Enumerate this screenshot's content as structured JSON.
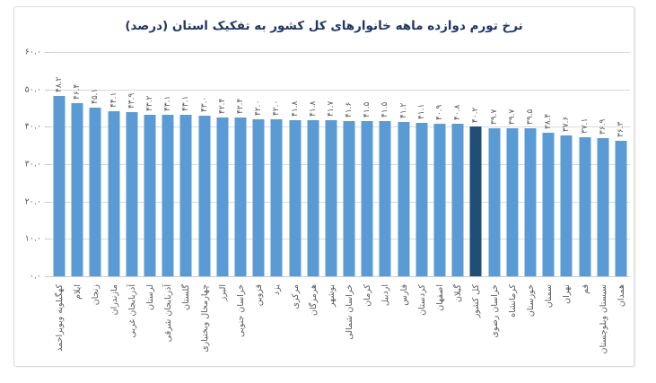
{
  "chart_data": {
    "type": "bar",
    "title": "نرخ تورم دوازده ماهه خانوارهای کل کشور به تفکیک استان (درصد)",
    "xlabel": "",
    "ylabel": "",
    "ylim": [
      0,
      60
    ],
    "grid": true,
    "legend": "none",
    "value_labels_rotated": true,
    "category_labels_rotated": true,
    "highlight_index": 23,
    "colors": {
      "bar": "#5B9BD5",
      "highlight": "#1F4E79",
      "grid": "#D9D9D9",
      "axis_line": "#C9C9C9",
      "label": "#595959",
      "title": "#1F3864"
    },
    "y_ticks": [
      {
        "value": 0,
        "label": "۰.۰"
      },
      {
        "value": 10,
        "label": "۱۰.۰"
      },
      {
        "value": 20,
        "label": "۲۰.۰"
      },
      {
        "value": 30,
        "label": "۳۰.۰"
      },
      {
        "value": 40,
        "label": "۴۰.۰"
      },
      {
        "value": 50,
        "label": "۵۰.۰"
      },
      {
        "value": 60,
        "label": "۶۰.۰"
      }
    ],
    "points": [
      {
        "category": "کهگیلویه وبویراحمد",
        "value": 48.2,
        "label": "۴۸.۲"
      },
      {
        "category": "ایلام",
        "value": 46.4,
        "label": "۴۶.۴"
      },
      {
        "category": "زنجان",
        "value": 45.1,
        "label": "۴۵.۱"
      },
      {
        "category": "مازندران",
        "value": 44.1,
        "label": "۴۴.۱"
      },
      {
        "category": "آذربایجان غربی",
        "value": 43.9,
        "label": "۴۳.۹"
      },
      {
        "category": "لرستان",
        "value": 43.2,
        "label": "۴۳.۲"
      },
      {
        "category": "آذربایجان شرقی",
        "value": 43.1,
        "label": "۴۳.۱"
      },
      {
        "category": "گلستان",
        "value": 43.1,
        "label": "۴۳.۱"
      },
      {
        "category": "چهارمحال وبختیاری",
        "value": 43.0,
        "label": "۴۳.۰"
      },
      {
        "category": "البرز",
        "value": 42.4,
        "label": "۴۲.۴"
      },
      {
        "category": "خراسان جنوبی",
        "value": 42.4,
        "label": "۴۲.۴"
      },
      {
        "category": "قزوین",
        "value": 42.0,
        "label": "۴۲.۰"
      },
      {
        "category": "یزد",
        "value": 42.0,
        "label": "۴۲.۰"
      },
      {
        "category": "مرکزی",
        "value": 41.8,
        "label": "۴۱.۸"
      },
      {
        "category": "هرمزگان",
        "value": 41.8,
        "label": "۴۱.۸"
      },
      {
        "category": "بوشهر",
        "value": 41.7,
        "label": "۴۱.۷"
      },
      {
        "category": "خراسان شمالی",
        "value": 41.6,
        "label": "۴۱.۶"
      },
      {
        "category": "کرمان",
        "value": 41.5,
        "label": "۴۱.۵"
      },
      {
        "category": "اردبیل",
        "value": 41.5,
        "label": "۴۱.۵"
      },
      {
        "category": "فارس",
        "value": 41.2,
        "label": "۴۱.۲"
      },
      {
        "category": "کردستان",
        "value": 41.1,
        "label": "۴۱.۱"
      },
      {
        "category": "اصفهان",
        "value": 40.9,
        "label": "۴۰.۹"
      },
      {
        "category": "گیلان",
        "value": 40.8,
        "label": "۴۰.۸"
      },
      {
        "category": "کل کشور",
        "value": 40.2,
        "label": "۴۰.۲"
      },
      {
        "category": "خراسان رضوی",
        "value": 39.7,
        "label": "۳۹.۷"
      },
      {
        "category": "کرمانشاه",
        "value": 39.7,
        "label": "۳۹.۷"
      },
      {
        "category": "خوزستان",
        "value": 39.5,
        "label": "۳۹.۵"
      },
      {
        "category": "سمنان",
        "value": 38.4,
        "label": "۳۸.۴"
      },
      {
        "category": "تهران",
        "value": 37.6,
        "label": "۳۷.۶"
      },
      {
        "category": "قم",
        "value": 37.1,
        "label": "۳۷.۱"
      },
      {
        "category": "سیستان وبلوچستان",
        "value": 36.9,
        "label": "۳۶.۹"
      },
      {
        "category": "همدان",
        "value": 36.3,
        "label": "۳۶.۳"
      }
    ]
  }
}
